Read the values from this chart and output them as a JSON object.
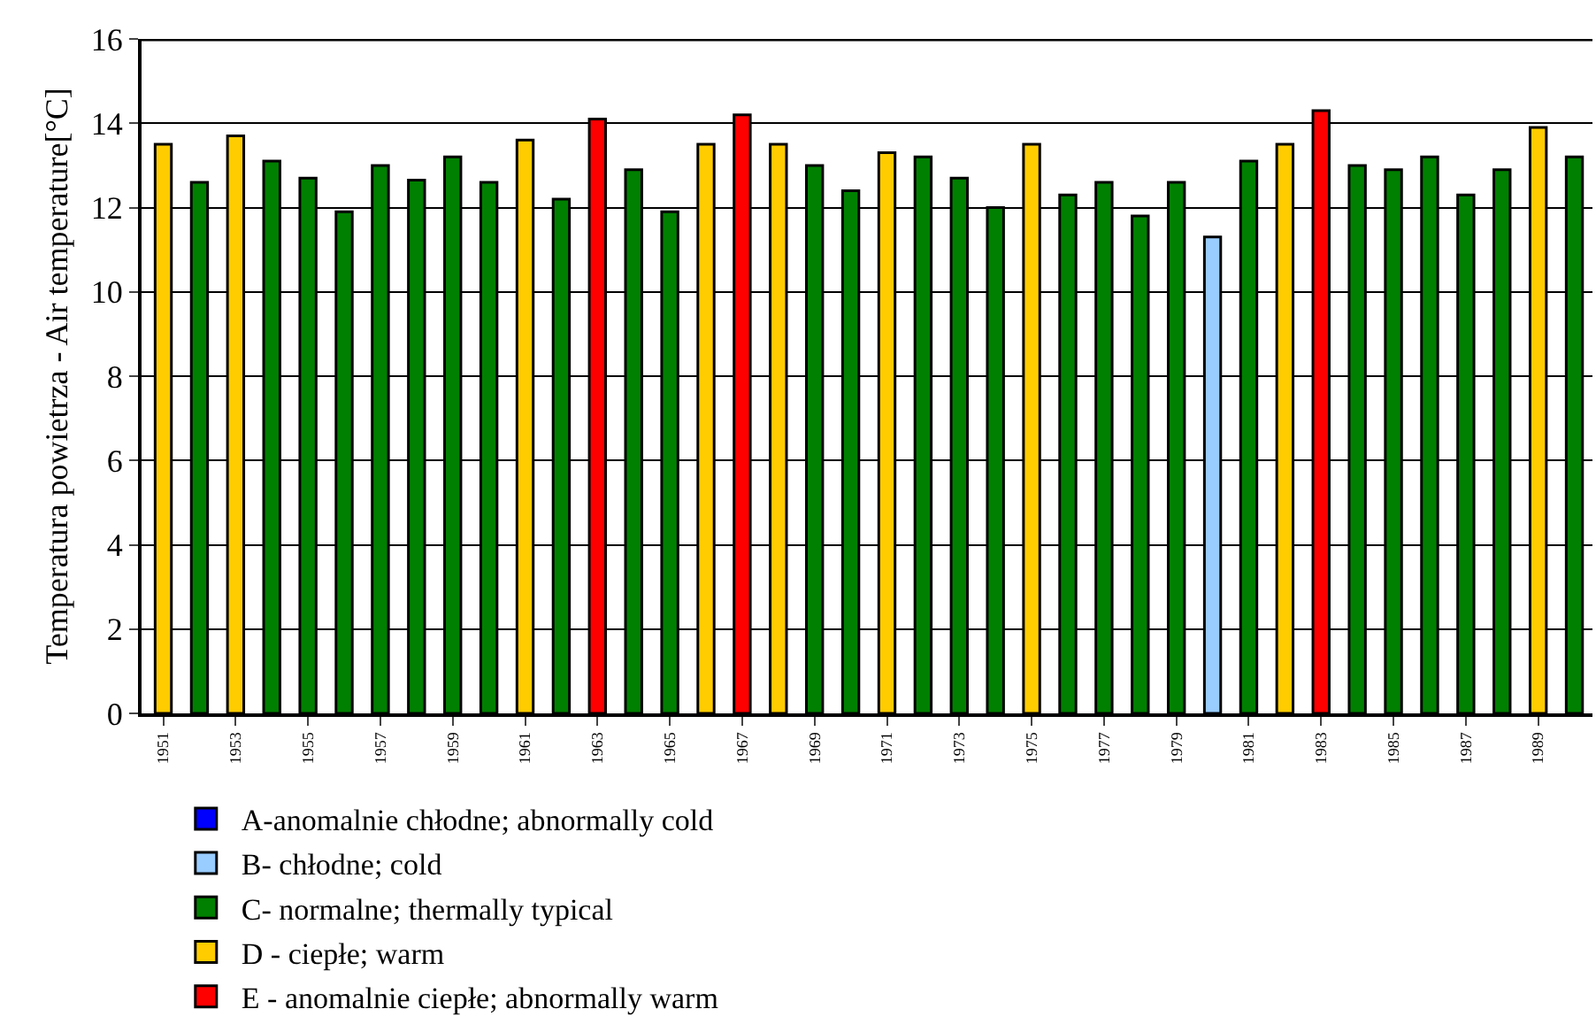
{
  "chart_data": {
    "type": "bar",
    "ylabel": "Temperatura powietrza - Air temperature[°C]",
    "categories": [
      "1951",
      null,
      "1953",
      null,
      "1955",
      null,
      "1957",
      null,
      "1959",
      null,
      "1961",
      null,
      "1963",
      null,
      "1965",
      null,
      "1967",
      null,
      "1969",
      null,
      "1971",
      null,
      "1973",
      null,
      "1975",
      null,
      "1977",
      null,
      "1979",
      null,
      "1981",
      null,
      "1983",
      null,
      "1985",
      null,
      "1987",
      null,
      "1989",
      null
    ],
    "series": [
      {
        "name": "A-anomalnie chłodne; abnormally cold",
        "color": "#0000ff",
        "values": [
          null,
          null,
          null,
          null,
          null,
          null,
          null,
          null,
          null,
          null,
          null,
          null,
          null,
          null,
          null,
          null,
          null,
          null,
          null,
          null,
          null,
          null,
          null,
          null,
          null,
          null,
          null,
          null,
          null,
          null,
          null,
          null,
          null,
          null,
          null,
          null,
          null,
          null,
          null,
          null
        ]
      },
      {
        "name": "B- chłodne; cold",
        "color": "#99ccff",
        "values": [
          null,
          null,
          null,
          null,
          null,
          null,
          null,
          null,
          null,
          null,
          null,
          null,
          null,
          null,
          null,
          null,
          null,
          null,
          null,
          null,
          null,
          null,
          null,
          null,
          null,
          null,
          null,
          null,
          null,
          11.3,
          null,
          null,
          null,
          null,
          null,
          null,
          null,
          null,
          null,
          null
        ]
      },
      {
        "name": "C- normalne; thermally typical",
        "color": "#008000",
        "values": [
          null,
          12.6,
          null,
          13.1,
          12.7,
          11.9,
          13.0,
          12.65,
          13.2,
          12.6,
          null,
          12.2,
          null,
          12.9,
          11.9,
          null,
          null,
          null,
          13.0,
          12.4,
          null,
          13.2,
          12.7,
          12.0,
          null,
          12.3,
          12.6,
          11.8,
          12.6,
          null,
          13.1,
          null,
          null,
          13.0,
          12.9,
          13.2,
          12.3,
          12.9,
          null,
          13.2
        ]
      },
      {
        "name": "D - ciepłe; warm",
        "color": "#ffcc00",
        "values": [
          13.5,
          null,
          13.7,
          null,
          null,
          null,
          null,
          null,
          null,
          null,
          13.6,
          null,
          null,
          null,
          null,
          13.5,
          null,
          13.5,
          null,
          null,
          13.3,
          null,
          null,
          null,
          13.5,
          null,
          null,
          null,
          null,
          null,
          null,
          13.5,
          null,
          null,
          null,
          null,
          null,
          null,
          13.9,
          null
        ]
      },
      {
        "name": "E - anomalnie ciepłe; abnormally warm",
        "color": "#ff0000",
        "values": [
          null,
          null,
          null,
          null,
          null,
          null,
          null,
          null,
          null,
          null,
          null,
          null,
          14.1,
          null,
          null,
          null,
          14.2,
          null,
          null,
          null,
          null,
          null,
          null,
          null,
          null,
          null,
          null,
          null,
          null,
          null,
          null,
          null,
          14.3,
          null,
          null,
          null,
          null,
          null,
          null,
          null
        ]
      }
    ],
    "ylim": [
      0,
      16
    ],
    "yticks": [
      0,
      2,
      4,
      6,
      8,
      10,
      12,
      14,
      16
    ],
    "grid": "y",
    "legend": "bottom"
  }
}
